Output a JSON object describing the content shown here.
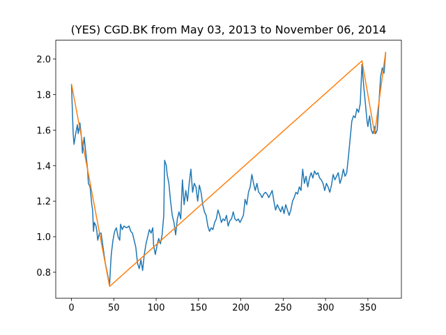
{
  "chart_data": {
    "type": "line",
    "title": "(YES) CGD.BK from May 03, 2013 to November 06, 2014",
    "xlim": [
      -18.55,
      389.55
    ],
    "ylim": [
      0.654,
      2.106
    ],
    "xticks": [
      0,
      50,
      100,
      150,
      200,
      250,
      300,
      350
    ],
    "yticks": [
      0.8,
      {
        "value": 1,
        "label": "1.0"
      },
      1.2,
      1.4,
      1.6,
      1.8,
      {
        "value": 2,
        "label": "2.0"
      }
    ],
    "series": [
      {
        "color": "#1f77b4",
        "x": [
          0,
          2,
          3,
          5,
          7,
          8,
          10,
          12,
          13,
          15,
          17,
          19,
          20,
          22,
          24,
          25,
          26,
          27,
          29,
          30,
          31,
          33,
          35,
          37,
          40,
          43,
          45,
          46,
          47,
          49,
          51,
          53,
          55,
          57,
          58,
          60,
          62,
          65,
          68,
          70,
          72,
          74,
          76,
          78,
          80,
          82,
          84,
          86,
          88,
          90,
          92,
          94,
          96,
          97,
          99,
          101,
          103,
          105,
          107,
          109,
          110,
          112,
          113,
          115,
          117,
          119,
          121,
          123,
          125,
          127,
          129,
          131,
          133,
          135,
          137,
          139,
          141,
          143,
          145,
          147,
          149,
          151,
          153,
          155,
          157,
          159,
          161,
          163,
          165,
          167,
          169,
          171,
          173,
          175,
          177,
          179,
          181,
          183,
          185,
          187,
          189,
          191,
          193,
          195,
          197,
          199,
          201,
          203,
          205,
          207,
          209,
          211,
          213,
          215,
          217,
          219,
          221,
          223,
          225,
          227,
          229,
          231,
          233,
          235,
          237,
          239,
          241,
          243,
          245,
          247,
          249,
          251,
          253,
          255,
          257,
          259,
          261,
          263,
          265,
          267,
          269,
          271,
          273,
          275,
          277,
          279,
          281,
          283,
          285,
          287,
          289,
          291,
          293,
          295,
          297,
          299,
          301,
          303,
          305,
          307,
          309,
          311,
          313,
          315,
          317,
          319,
          321,
          323,
          325,
          327,
          329,
          331,
          333,
          335,
          337,
          339,
          341,
          343,
          345,
          347,
          349,
          350,
          352,
          354,
          356,
          358,
          359,
          361,
          363,
          365,
          367,
          369,
          371
        ],
        "values": [
          1.86,
          1.58,
          1.52,
          1.58,
          1.63,
          1.58,
          1.64,
          1.55,
          1.47,
          1.56,
          1.47,
          1.38,
          1.3,
          1.28,
          1.18,
          1.15,
          1.03,
          1.08,
          1.06,
          1.03,
          0.98,
          1.02,
          1.02,
          0.95,
          0.85,
          0.78,
          0.73,
          0.82,
          0.9,
          0.98,
          1.03,
          1.05,
          1.0,
          0.98,
          1.07,
          1.04,
          1.06,
          1.05,
          1.06,
          1.03,
          1.02,
          0.98,
          0.94,
          0.85,
          0.82,
          0.87,
          0.81,
          0.9,
          0.96,
          1.0,
          1.04,
          1.02,
          1.05,
          0.95,
          0.9,
          0.95,
          0.99,
          0.96,
          1.01,
          1.12,
          1.43,
          1.4,
          1.35,
          1.3,
          1.2,
          1.12,
          1.08,
          1.01,
          1.1,
          1.14,
          1.1,
          1.32,
          1.18,
          1.26,
          1.2,
          1.3,
          1.38,
          1.25,
          1.3,
          1.28,
          1.2,
          1.29,
          1.25,
          1.18,
          1.14,
          1.12,
          1.06,
          1.03,
          1.05,
          1.04,
          1.08,
          1.1,
          1.15,
          1.12,
          1.08,
          1.1,
          1.09,
          1.12,
          1.06,
          1.09,
          1.1,
          1.14,
          1.1,
          1.09,
          1.1,
          1.08,
          1.1,
          1.12,
          1.21,
          1.18,
          1.25,
          1.28,
          1.35,
          1.3,
          1.26,
          1.3,
          1.25,
          1.24,
          1.22,
          1.24,
          1.25,
          1.24,
          1.22,
          1.24,
          1.26,
          1.2,
          1.15,
          1.18,
          1.16,
          1.14,
          1.17,
          1.13,
          1.18,
          1.15,
          1.12,
          1.15,
          1.2,
          1.22,
          1.25,
          1.24,
          1.28,
          1.26,
          1.38,
          1.3,
          1.34,
          1.28,
          1.33,
          1.36,
          1.33,
          1.37,
          1.35,
          1.36,
          1.33,
          1.32,
          1.3,
          1.26,
          1.3,
          1.28,
          1.25,
          1.29,
          1.35,
          1.32,
          1.34,
          1.36,
          1.3,
          1.33,
          1.38,
          1.34,
          1.36,
          1.45,
          1.55,
          1.65,
          1.68,
          1.67,
          1.72,
          1.7,
          1.75,
          1.97,
          1.85,
          1.75,
          1.65,
          1.62,
          1.68,
          1.6,
          1.58,
          1.62,
          1.58,
          1.6,
          1.75,
          1.9,
          1.95,
          1.92,
          2.04
        ]
      },
      {
        "color": "#ff7f0e",
        "x": [
          0,
          45,
          343,
          358,
          371
        ],
        "values": [
          1.86,
          0.72,
          1.99,
          1.58,
          2.04
        ]
      }
    ]
  }
}
